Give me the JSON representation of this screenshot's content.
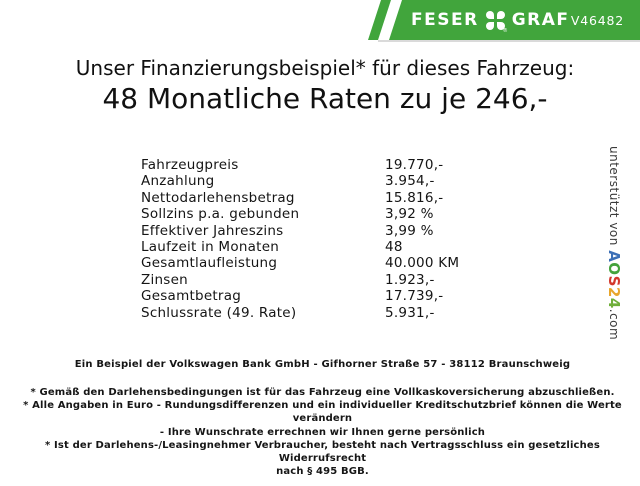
{
  "header": {
    "brand_left": "FESER",
    "brand_right": "GRAF",
    "clover_icon": "four-leaf-clover",
    "registered_mark": "®",
    "vehicle_id": "V46482",
    "bar_color": "#41a53c"
  },
  "title": {
    "line1": "Unser Finanzierungsbeispiel* für dieses Fahrzeug:",
    "line2": "48 Monatliche Raten zu je 246,-"
  },
  "finance": {
    "rows": [
      {
        "label": "Fahrzeugpreis",
        "value": "19.770,-"
      },
      {
        "label": "Anzahlung",
        "value": "3.954,-"
      },
      {
        "label": "Nettodarlehensbetrag",
        "value": "15.816,-"
      },
      {
        "label": "Sollzins p.a. gebunden",
        "value": "3,92 %"
      },
      {
        "label": "Effektiver Jahreszins",
        "value": "3,99 %"
      },
      {
        "label": "Laufzeit in Monaten",
        "value": "48"
      },
      {
        "label": "Gesamtlaufleistung",
        "value": "40.000 KM"
      },
      {
        "label": "Zinsen",
        "value": "1.923,-"
      },
      {
        "label": "Gesamtbetrag",
        "value": "17.739,-"
      },
      {
        "label": "Schlussrate (49. Rate)",
        "value": "5.931,-"
      }
    ]
  },
  "bank_line": "Ein Beispiel der Volkswagen Bank GmbH - Gifhorner Straße 57 - 38112 Braunschweig",
  "disclaimer_lines": [
    "* Gemäß den Darlehensbedingungen ist für das Fahrzeug eine Vollkaskoversicherung abzuschließen.",
    "* Alle Angaben in Euro - Rundungsdifferenzen und ein individueller Kreditschutzbrief können die Werte verändern",
    "- Ihre Wunschrate errechnen wir Ihnen gerne persönlich",
    "* Ist der Darlehens-/Leasingnehmer Verbraucher, besteht nach Vertragsschluss ein gesetzliches Widerrufsrecht",
    "nach § 495 BGB."
  ],
  "sponsor": {
    "prefix": "unterstützt von ",
    "brand_letters": [
      {
        "char": "A",
        "color": "#3b6fb6"
      },
      {
        "char": "O",
        "color": "#44a23c"
      },
      {
        "char": "S",
        "color": "#d3372c"
      },
      {
        "char": "2",
        "color": "#e8a62c"
      },
      {
        "char": "4",
        "color": "#6fae3a"
      }
    ],
    "suffix": ".com"
  }
}
